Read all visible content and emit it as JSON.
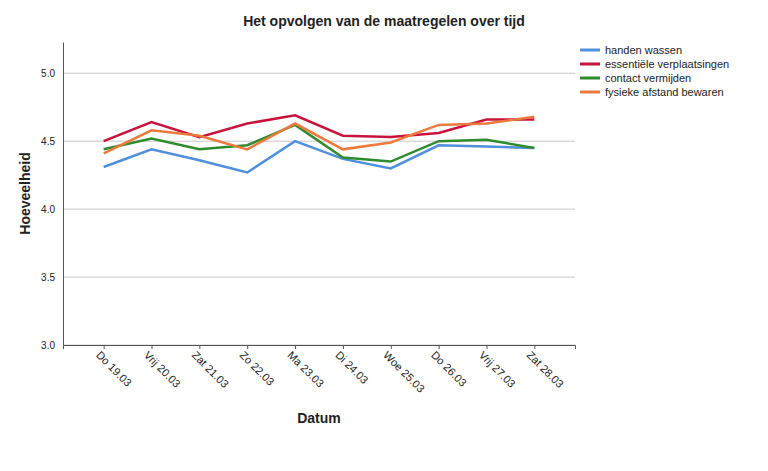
{
  "chart_data": {
    "type": "line",
    "title": "Het opvolgen van de maatregelen over tijd",
    "x_label": "Datum",
    "y_label": "Hoeveelheid",
    "categories": [
      "Do 19.03",
      "Vrij 20.03",
      "Zat 21.03",
      "Zo 22.03",
      "Ma 23.03",
      "Di 24.03",
      "Woe 25.03",
      "Do 26.03",
      "Vrij 27.03",
      "Zat 28.03"
    ],
    "series": [
      {
        "name": "handen wassen",
        "color": "#4f8fdb",
        "values": [
          4.31,
          4.44,
          4.36,
          4.27,
          4.5,
          4.37,
          4.3,
          4.47,
          4.46,
          4.45
        ]
      },
      {
        "name": "essentiële verplaatsingen",
        "color": "#c8143c",
        "values": [
          4.5,
          4.64,
          4.53,
          4.63,
          4.69,
          4.54,
          4.53,
          4.56,
          4.66,
          4.66
        ]
      },
      {
        "name": "contact vermijden",
        "color": "#2e8b2e",
        "values": [
          4.44,
          4.52,
          4.44,
          4.47,
          4.62,
          4.38,
          4.35,
          4.5,
          4.51,
          4.45
        ]
      },
      {
        "name": "fysieke afstand bewaren",
        "color": "#ec7a3c",
        "values": [
          4.41,
          4.58,
          4.54,
          4.44,
          4.63,
          4.44,
          4.49,
          4.62,
          4.63,
          4.68
        ]
      }
    ],
    "ylim": [
      3,
      5.23
    ],
    "yticks": [
      {
        "value": 3,
        "label": "3.0"
      },
      {
        "value": 3.5,
        "label": "3.5"
      },
      {
        "value": 4,
        "label": "4.0"
      },
      {
        "value": 4.5,
        "label": "4.5"
      },
      {
        "value": 5,
        "label": "5.0"
      }
    ],
    "grid": true,
    "legend": "right"
  }
}
